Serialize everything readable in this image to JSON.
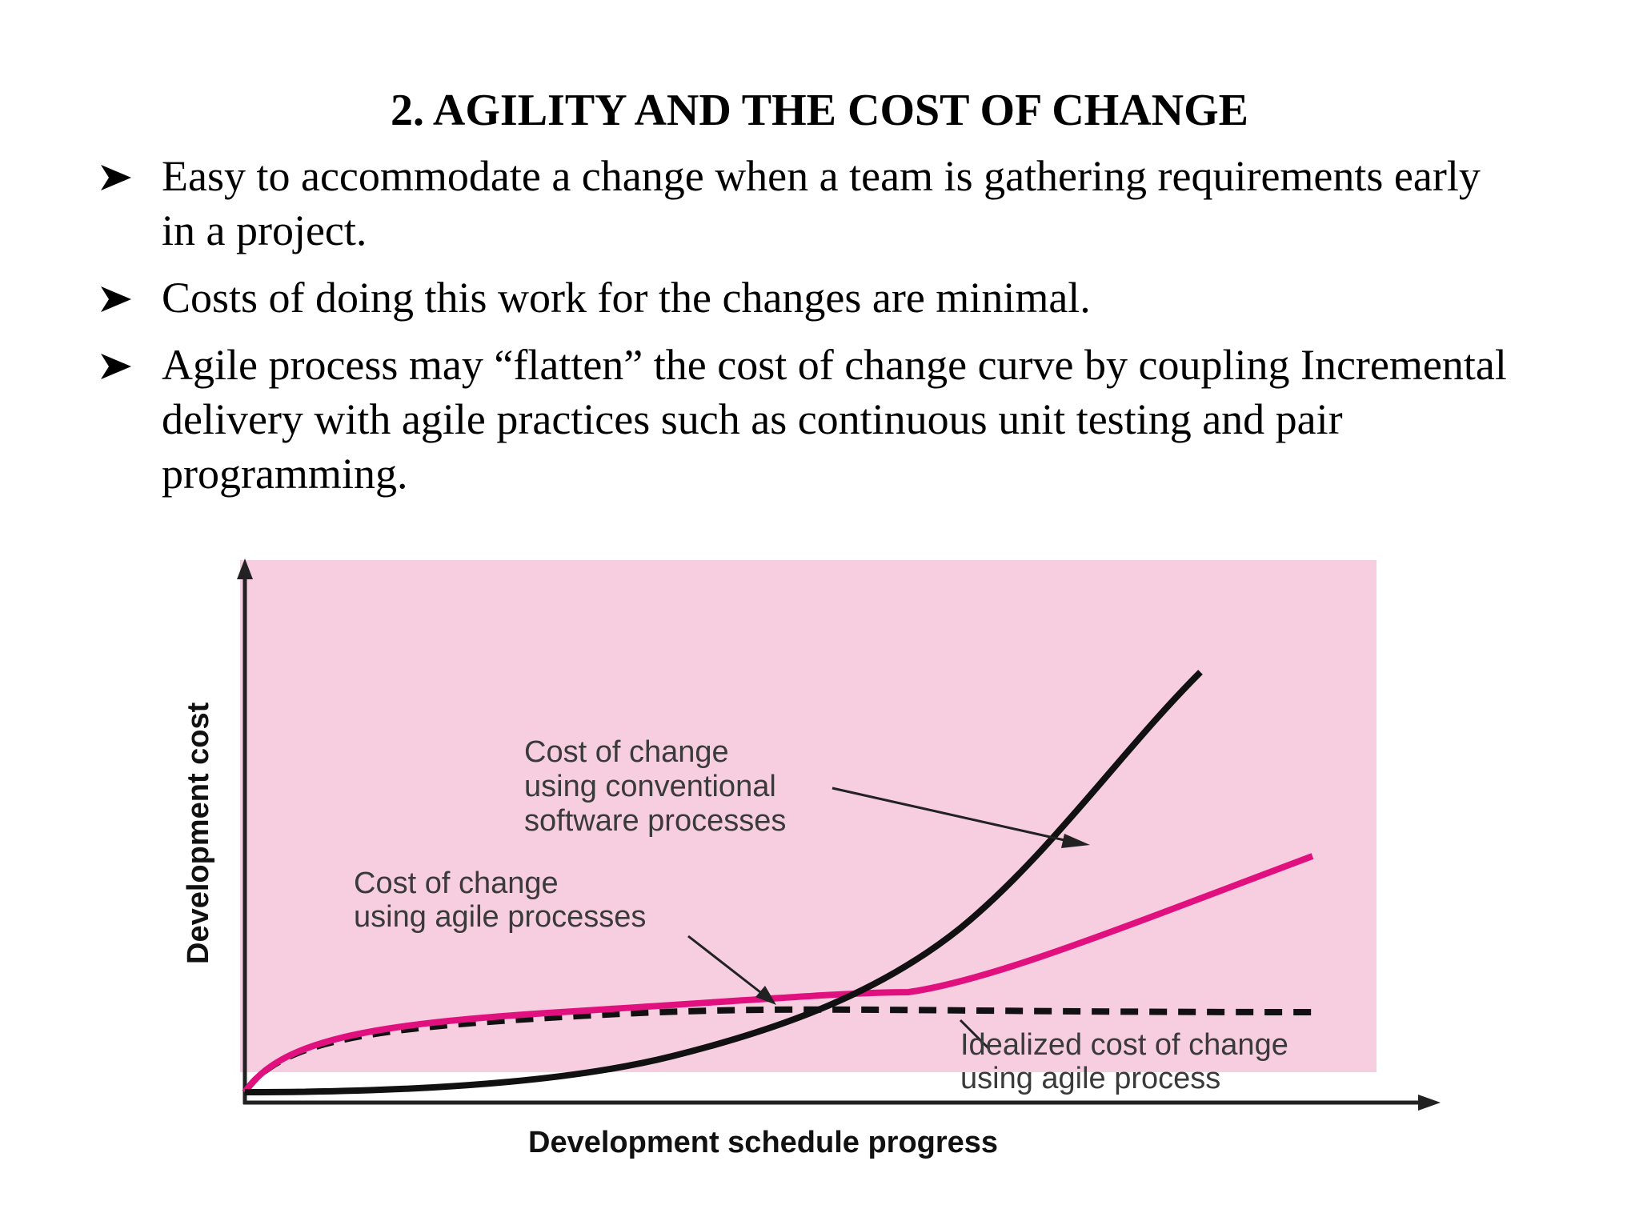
{
  "slide": {
    "title": "2. AGILITY AND THE COST OF CHANGE",
    "bullets": [
      "Easy to accommodate a change when a team is gathering requirements early in a project.",
      "Costs of doing this work for the changes are minimal.",
      "Agile process may “flatten” the cost of change curve by coupling Incremental delivery with agile practices such as continuous unit testing and pair programming."
    ]
  },
  "figure": {
    "xlabel": "Development schedule progress",
    "ylabel": "Development cost",
    "annotations": {
      "conventional": [
        "Cost of change",
        "using conventional",
        "software processes"
      ],
      "agile": [
        "Cost of change",
        "using agile processes"
      ],
      "idealized": [
        "Idealized cost of change",
        "using agile process"
      ]
    },
    "colors": {
      "background": "#f7cde0",
      "conventional_curve": "#111111",
      "agile_curve": "#e0117f",
      "idealized_curve": "#111111"
    }
  }
}
